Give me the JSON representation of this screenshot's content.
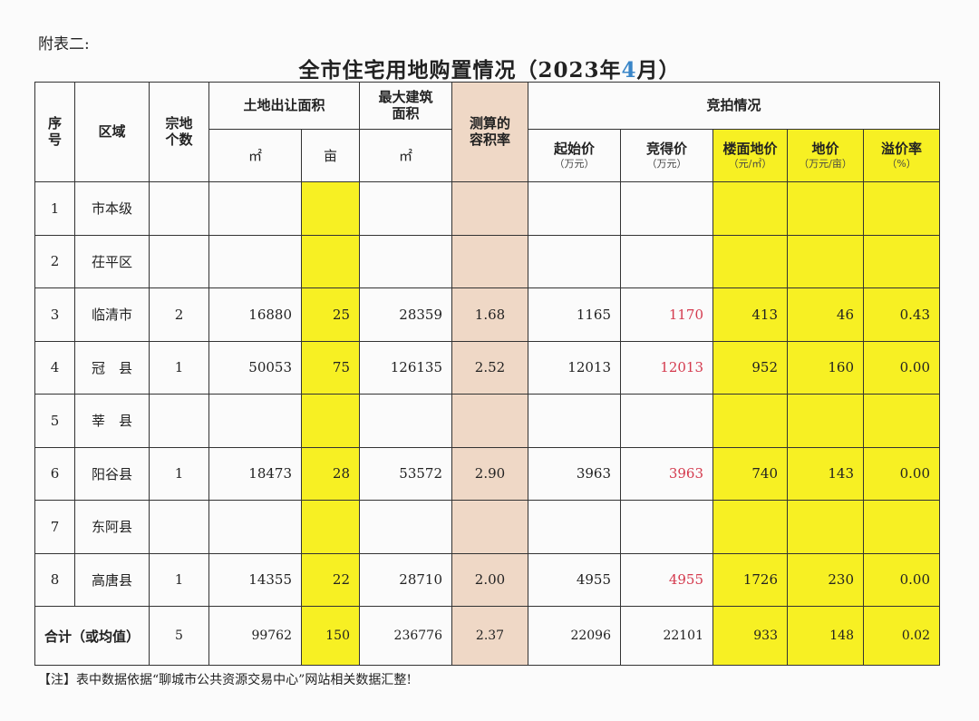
{
  "appendix_label": "附表二:",
  "title": {
    "prefix": "全市住宅用地购置情况（2023年",
    "month": "4",
    "suffix": "月）"
  },
  "headers": {
    "seq": "序号",
    "region": "区域",
    "parcel_count": "宗地个数",
    "land_area": "土地出让面积",
    "max_building_area": "最大建筑面积",
    "plot_ratio": "测算的容积率",
    "auction": "竞拍情况",
    "unit_sqm": "㎡",
    "unit_mu": "亩",
    "start_price": "起始价",
    "start_price_unit": "（万元）",
    "winning_price": "竞得价",
    "winning_price_unit": "（万元）",
    "floor_price": "楼面地价",
    "floor_price_unit": "（元/㎡）",
    "land_price": "地价",
    "land_price_unit": "（万元/亩）",
    "premium_rate": "溢价率",
    "premium_rate_unit": "（%）"
  },
  "rows": [
    {
      "seq": "1",
      "region": "市本级",
      "count": "",
      "area_sqm": "",
      "area_mu": "",
      "max_area": "",
      "ratio": "",
      "start": "",
      "win": "",
      "floor": "",
      "land": "",
      "premium": ""
    },
    {
      "seq": "2",
      "region": "茌平区",
      "count": "",
      "area_sqm": "",
      "area_mu": "",
      "max_area": "",
      "ratio": "",
      "start": "",
      "win": "",
      "floor": "",
      "land": "",
      "premium": ""
    },
    {
      "seq": "3",
      "region": "临清市",
      "count": "2",
      "area_sqm": "16880",
      "area_mu": "25",
      "max_area": "28359",
      "ratio": "1.68",
      "start": "1165",
      "win": "1170",
      "floor": "413",
      "land": "46",
      "premium": "0.43"
    },
    {
      "seq": "4",
      "region": "冠　县",
      "count": "1",
      "area_sqm": "50053",
      "area_mu": "75",
      "max_area": "126135",
      "ratio": "2.52",
      "start": "12013",
      "win": "12013",
      "floor": "952",
      "land": "160",
      "premium": "0.00"
    },
    {
      "seq": "5",
      "region": "莘　县",
      "count": "",
      "area_sqm": "",
      "area_mu": "",
      "max_area": "",
      "ratio": "",
      "start": "",
      "win": "",
      "floor": "",
      "land": "",
      "premium": ""
    },
    {
      "seq": "6",
      "region": "阳谷县",
      "count": "1",
      "area_sqm": "18473",
      "area_mu": "28",
      "max_area": "53572",
      "ratio": "2.90",
      "start": "3963",
      "win": "3963",
      "floor": "740",
      "land": "143",
      "premium": "0.00"
    },
    {
      "seq": "7",
      "region": "东阿县",
      "count": "",
      "area_sqm": "",
      "area_mu": "",
      "max_area": "",
      "ratio": "",
      "start": "",
      "win": "",
      "floor": "",
      "land": "",
      "premium": ""
    },
    {
      "seq": "8",
      "region": "高唐县",
      "count": "1",
      "area_sqm": "14355",
      "area_mu": "22",
      "max_area": "28710",
      "ratio": "2.00",
      "start": "4955",
      "win": "4955",
      "floor": "1726",
      "land": "230",
      "premium": "0.00"
    }
  ],
  "total": {
    "label": "合计（或均值）",
    "count": "5",
    "area_sqm": "99762",
    "area_mu": "150",
    "max_area": "236776",
    "ratio": "2.37",
    "start": "22096",
    "win": "22101",
    "floor": "933",
    "land": "148",
    "premium": "0.02"
  },
  "note": "【注】表中数据依据“聊城市公共资源交易中心”网站相关数据汇整!",
  "colors": {
    "highlight_yellow": "#f7f023",
    "highlight_tan": "#efd8c6",
    "winning_price_red": "#d43a4e",
    "title_month_blue": "#3a86c8"
  }
}
